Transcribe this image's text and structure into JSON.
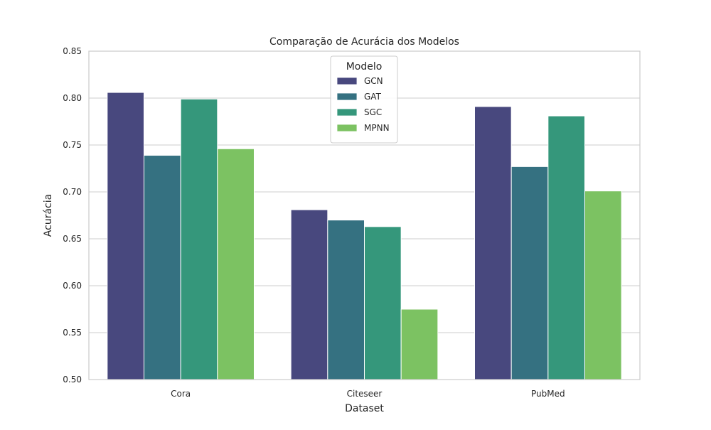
{
  "chart_data": {
    "type": "bar",
    "title": "Comparação de Acurácia dos Modelos",
    "xlabel": "Dataset",
    "ylabel": "Acurácia",
    "categories": [
      "Cora",
      "Citeseer",
      "PubMed"
    ],
    "ylim": [
      0.5,
      0.85
    ],
    "yticks": [
      "0.50",
      "0.55",
      "0.60",
      "0.65",
      "0.70",
      "0.75",
      "0.80",
      "0.85"
    ],
    "grid": true,
    "legend": {
      "title": "Modelo",
      "placement": "top-center"
    },
    "series": [
      {
        "name": "GCN",
        "color": "#48487e",
        "values": [
          0.806,
          0.681,
          0.791
        ]
      },
      {
        "name": "GAT",
        "color": "#357181",
        "values": [
          0.739,
          0.67,
          0.727
        ]
      },
      {
        "name": "SGC",
        "color": "#35977b",
        "values": [
          0.799,
          0.663,
          0.781
        ]
      },
      {
        "name": "MPNN",
        "color": "#7cc262",
        "values": [
          0.746,
          0.575,
          0.701
        ]
      }
    ]
  }
}
